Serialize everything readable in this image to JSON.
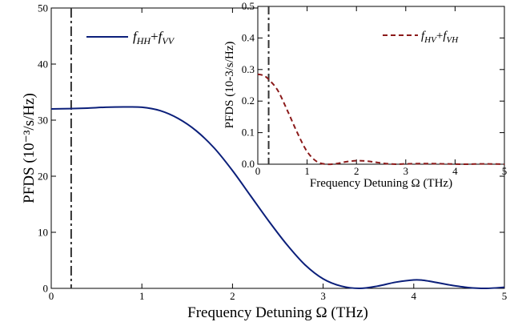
{
  "chart_data": [
    {
      "type": "line",
      "xlabel": "Frequency Detuning Ω  (THz)",
      "ylabel": "PFDS  (10⁻³/s/Hz)",
      "xlim": [
        0,
        5
      ],
      "ylim": [
        0,
        50
      ],
      "x_ticks": [
        "0",
        "1",
        "2",
        "3",
        "4",
        "5"
      ],
      "y_ticks": [
        "0",
        "10",
        "20",
        "30",
        "40",
        "50"
      ],
      "reference_line_x": 0.22,
      "legend_position": "top-left",
      "series": [
        {
          "name": "fHH+fVV",
          "legend_main_1": "f",
          "legend_sub_1": "HH",
          "legend_plus": "+",
          "legend_main_2": "f",
          "legend_sub_2": "VV",
          "color": "#0b1f7a",
          "style": "solid",
          "x": [
            0,
            0.2,
            0.4,
            0.6,
            0.8,
            1.0,
            1.2,
            1.4,
            1.6,
            1.8,
            2.0,
            2.2,
            2.4,
            2.6,
            2.8,
            3.0,
            3.2,
            3.4,
            3.6,
            3.8,
            4.0,
            4.1,
            4.2,
            4.4,
            4.6,
            4.8,
            5.0
          ],
          "y": [
            32.0,
            32.05,
            32.15,
            32.3,
            32.35,
            32.3,
            31.7,
            30.3,
            28.1,
            25.0,
            21.0,
            16.5,
            12.0,
            7.8,
            4.2,
            1.7,
            0.4,
            0.0,
            0.4,
            1.1,
            1.5,
            1.45,
            1.2,
            0.6,
            0.15,
            0.0,
            0.2
          ]
        }
      ]
    },
    {
      "type": "line",
      "xlabel": "Frequency Detuning Ω  (THz)",
      "ylabel": "PFDS  (10-3/s/Hz)",
      "xlim": [
        0,
        5
      ],
      "ylim": [
        0,
        0.5
      ],
      "x_ticks": [
        "0",
        "1",
        "2",
        "3",
        "4",
        "5"
      ],
      "y_ticks": [
        "0.0",
        "0.1",
        "0.2",
        "0.3",
        "0.4",
        "0.5"
      ],
      "reference_line_x": 0.22,
      "legend_position": "top-right",
      "series": [
        {
          "name": "fHV+fVH",
          "legend_main_1": "f",
          "legend_sub_1": "HV",
          "legend_plus": "+",
          "legend_main_2": "f",
          "legend_sub_2": "VH",
          "color": "#8b1a1a",
          "style": "dashed",
          "x": [
            0,
            0.1,
            0.2,
            0.4,
            0.6,
            0.8,
            1.0,
            1.2,
            1.4,
            1.6,
            1.8,
            2.0,
            2.2,
            2.4,
            2.6,
            2.8,
            3.0,
            3.4,
            3.8,
            4.2,
            4.6,
            5.0
          ],
          "y": [
            0.285,
            0.282,
            0.272,
            0.235,
            0.17,
            0.1,
            0.04,
            0.008,
            0.0,
            0.002,
            0.008,
            0.011,
            0.01,
            0.006,
            0.002,
            0.0,
            0.001,
            0.002,
            0.001,
            0.0,
            0.001,
            0.0
          ]
        }
      ]
    }
  ]
}
